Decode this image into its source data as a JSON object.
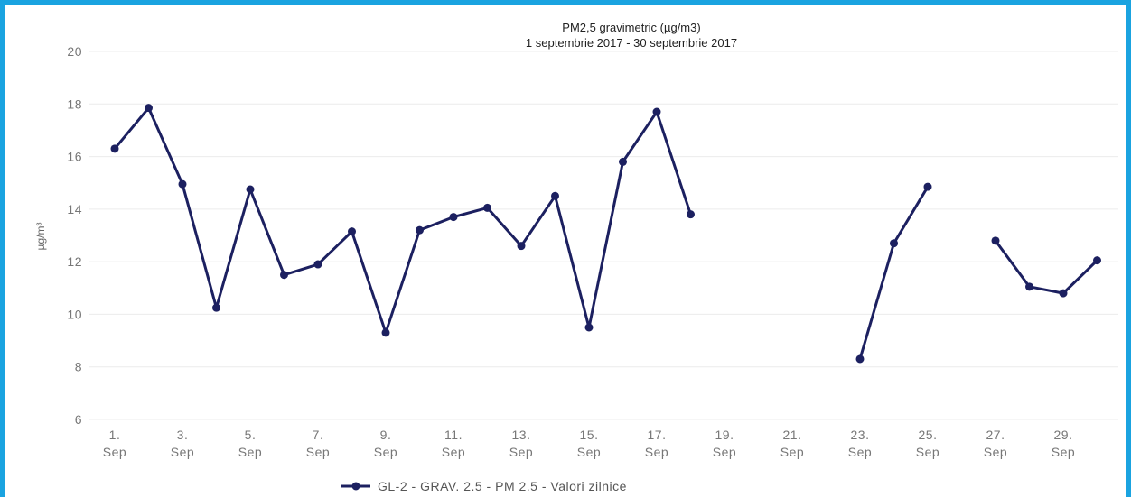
{
  "chart_data": {
    "type": "line",
    "title": "PM2,5 gravimetric (µg/m3)",
    "subtitle": "1 septembrie 2017 - 30 septembrie 2017",
    "ylabel": "µg/m³",
    "xlabel": "",
    "ylim": [
      6,
      20
    ],
    "yticks": [
      6,
      8,
      10,
      12,
      14,
      16,
      18,
      20
    ],
    "grid": true,
    "legend_position": "bottom",
    "color": "#1c2060",
    "x_tick_labels": [
      {
        "day": 1,
        "line1": "1.",
        "line2": "Sep"
      },
      {
        "day": 3,
        "line1": "3.",
        "line2": "Sep"
      },
      {
        "day": 5,
        "line1": "5.",
        "line2": "Sep"
      },
      {
        "day": 7,
        "line1": "7.",
        "line2": "Sep"
      },
      {
        "day": 9,
        "line1": "9.",
        "line2": "Sep"
      },
      {
        "day": 11,
        "line1": "11.",
        "line2": "Sep"
      },
      {
        "day": 13,
        "line1": "13.",
        "line2": "Sep"
      },
      {
        "day": 15,
        "line1": "15.",
        "line2": "Sep"
      },
      {
        "day": 17,
        "line1": "17.",
        "line2": "Sep"
      },
      {
        "day": 19,
        "line1": "19.",
        "line2": "Sep"
      },
      {
        "day": 21,
        "line1": "21.",
        "line2": "Sep"
      },
      {
        "day": 23,
        "line1": "23.",
        "line2": "Sep"
      },
      {
        "day": 25,
        "line1": "25.",
        "line2": "Sep"
      },
      {
        "day": 27,
        "line1": "27.",
        "line2": "Sep"
      },
      {
        "day": 29,
        "line1": "29.",
        "line2": "Sep"
      }
    ],
    "x_range": [
      1,
      30
    ],
    "series": [
      {
        "name": "GL-2 - GRAV. 2.5 - PM 2.5 - Valori zilnice",
        "points": [
          {
            "day": 1,
            "value": 16.3
          },
          {
            "day": 2,
            "value": 17.85
          },
          {
            "day": 3,
            "value": 14.95
          },
          {
            "day": 4,
            "value": 10.25
          },
          {
            "day": 5,
            "value": 14.75
          },
          {
            "day": 6,
            "value": 11.5
          },
          {
            "day": 7,
            "value": 11.9
          },
          {
            "day": 8,
            "value": 13.15
          },
          {
            "day": 9,
            "value": 9.3
          },
          {
            "day": 10,
            "value": 13.2
          },
          {
            "day": 11,
            "value": 13.7
          },
          {
            "day": 12,
            "value": 14.05
          },
          {
            "day": 13,
            "value": 12.6
          },
          {
            "day": 14,
            "value": 14.5
          },
          {
            "day": 15,
            "value": 9.5
          },
          {
            "day": 16,
            "value": 15.8
          },
          {
            "day": 17,
            "value": 17.7
          },
          {
            "day": 18,
            "value": 13.8
          },
          {
            "day": 19,
            "value": null
          },
          {
            "day": 20,
            "value": null
          },
          {
            "day": 21,
            "value": null
          },
          {
            "day": 22,
            "value": null
          },
          {
            "day": 23,
            "value": 8.3
          },
          {
            "day": 24,
            "value": 12.7
          },
          {
            "day": 25,
            "value": 14.85
          },
          {
            "day": 26,
            "value": null
          },
          {
            "day": 27,
            "value": 12.8
          },
          {
            "day": 28,
            "value": 11.05
          },
          {
            "day": 29,
            "value": 10.8
          },
          {
            "day": 30,
            "value": 12.05
          }
        ]
      }
    ]
  }
}
